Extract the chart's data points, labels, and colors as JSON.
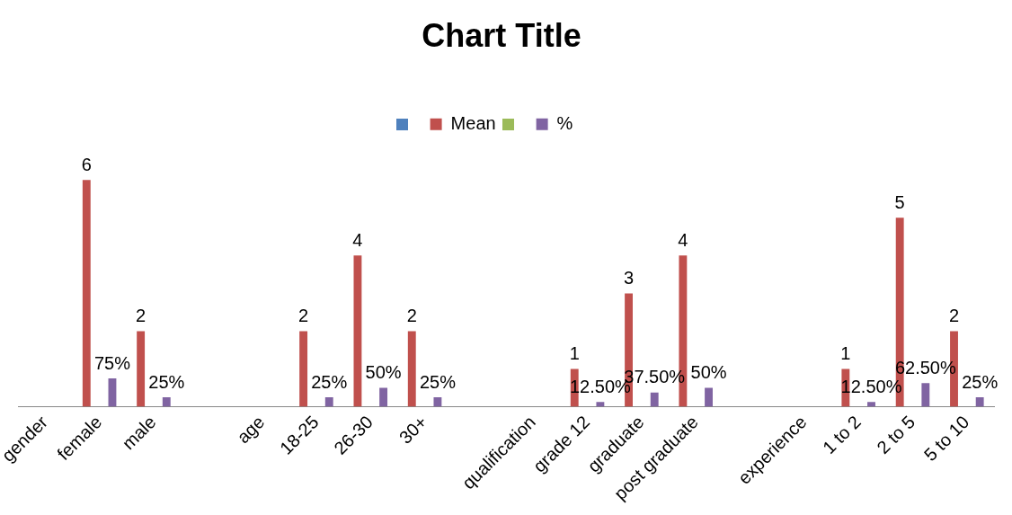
{
  "chart_data": {
    "type": "bar",
    "title": "Chart Title",
    "categories": [
      "gender",
      "female",
      "male",
      null,
      "age",
      "18-25",
      "26-30",
      "30+",
      null,
      "qualification",
      "grade 12",
      "graduate",
      "post graduate",
      null,
      "experience",
      "1 to 2",
      "2 to 5",
      "5 to 10"
    ],
    "series": [
      {
        "name": "Mean",
        "color": "#c0504d",
        "values": [
          null,
          6,
          2,
          null,
          null,
          2,
          4,
          2,
          null,
          null,
          1,
          3,
          4,
          null,
          null,
          1,
          5,
          2
        ],
        "value_labels": [
          null,
          "6",
          "2",
          null,
          null,
          "2",
          "4",
          "2",
          null,
          null,
          "1",
          "3",
          "4",
          null,
          null,
          "1",
          "5",
          "2"
        ]
      },
      {
        "name": "%",
        "color": "#8064a2",
        "values": [
          null,
          0.75,
          0.25,
          null,
          null,
          0.25,
          0.5,
          0.25,
          null,
          null,
          0.125,
          0.375,
          0.5,
          null,
          null,
          0.125,
          0.625,
          0.25
        ],
        "value_labels": [
          null,
          "75%",
          "25%",
          null,
          null,
          "25%",
          "50%",
          "25%",
          null,
          null,
          "12.50%",
          "37.50%",
          "50%",
          null,
          null,
          "12.50%",
          "62.50%",
          "25%"
        ]
      }
    ],
    "legend": "top",
    "grid": false
  }
}
